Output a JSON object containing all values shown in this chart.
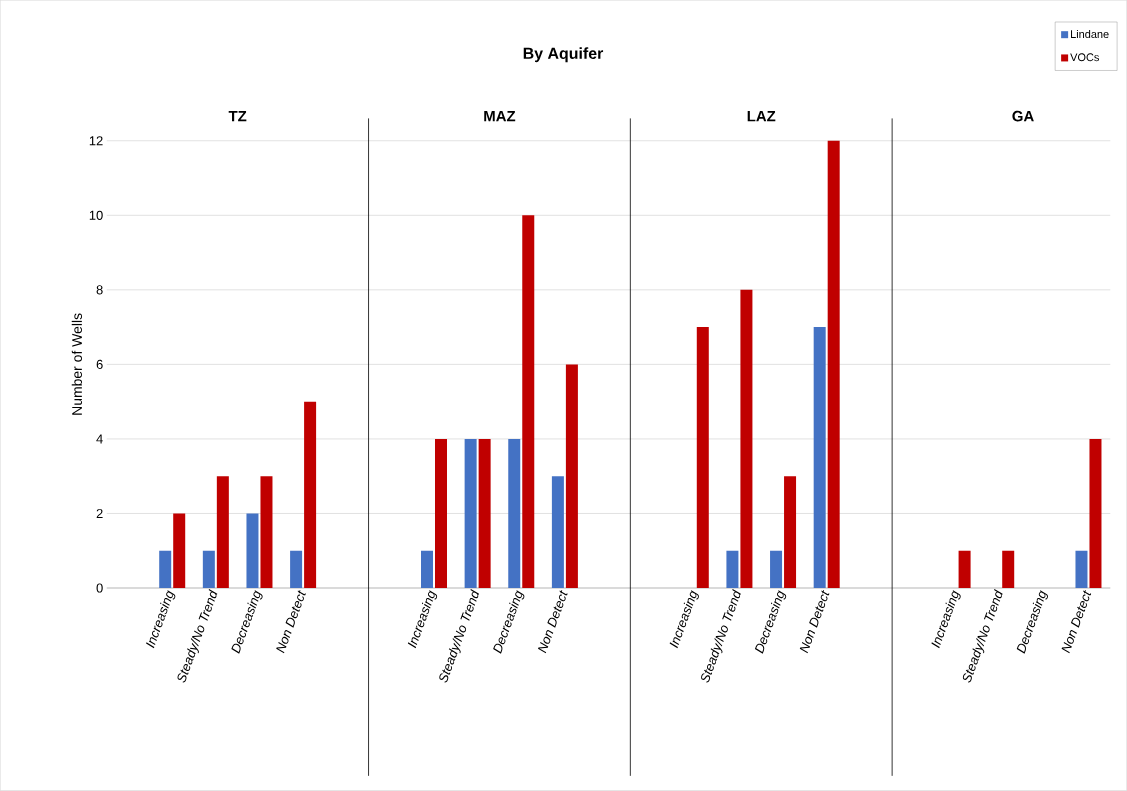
{
  "chart_data": {
    "type": "bar",
    "title": "By Aquifer",
    "ylabel": "Number of Wells",
    "categories": [
      null,
      "Increasing",
      "Steady/No Trend",
      "Decreasing",
      "Non Detect",
      null,
      null,
      "Increasing",
      "Steady/No Trend",
      "Decreasing",
      "Non Detect",
      null,
      null,
      "Increasing",
      "Steady/No Trend",
      "Decreasing",
      "Non Detect",
      null,
      null,
      "Increasing",
      "Steady/No Trend",
      "Decreasing",
      "Non Detect"
    ],
    "series": [
      {
        "name": "Lindane",
        "color": "#4472c4",
        "values": [
          null,
          1,
          1,
          2,
          1,
          null,
          null,
          1,
          4,
          4,
          3,
          null,
          null,
          0,
          1,
          1,
          7,
          null,
          null,
          0,
          0,
          0,
          1
        ]
      },
      {
        "name": "VOCs",
        "color": "#c00000",
        "values": [
          null,
          2,
          3,
          3,
          5,
          null,
          null,
          4,
          4,
          10,
          6,
          null,
          null,
          7,
          8,
          3,
          12,
          null,
          null,
          1,
          1,
          0,
          4
        ]
      }
    ],
    "ylim": [
      0,
      12
    ],
    "yticks": [
      0,
      2,
      4,
      6,
      8,
      10,
      12
    ],
    "grid": "y",
    "legend": "top right",
    "annotations": [
      "TZ",
      "MAZ",
      "LAZ",
      "GA"
    ]
  }
}
